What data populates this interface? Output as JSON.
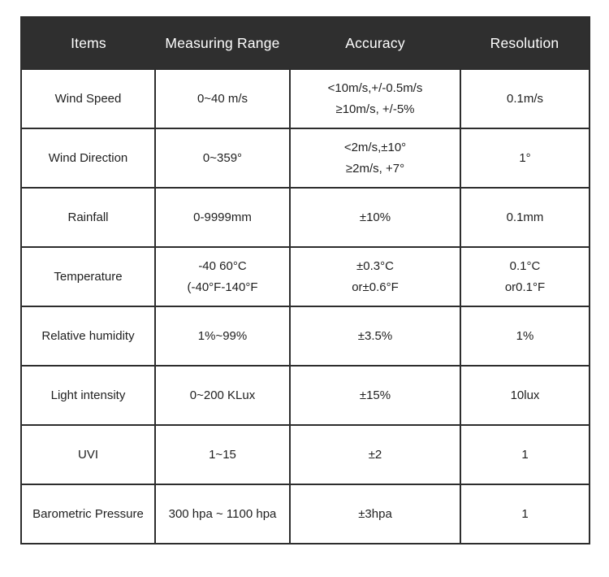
{
  "page": {
    "background_color": "#ffffff",
    "header_bg_color": "#2f2f2f",
    "header_text_color": "#ffffff",
    "border_color": "#2d2d2d",
    "body_text_color": "#1f1f1f"
  },
  "table": {
    "header": {
      "items": "Items",
      "measuring_range": "Measuring Range",
      "accuracy": "Accuracy",
      "resolution": "Resolution"
    },
    "rows": [
      {
        "item": "Wind Speed",
        "measuring_range": "0~40 m/s",
        "accuracy": "<10m/s,+/-0.5m/s\n≥10m/s, +/-5%",
        "resolution": "0.1m/s"
      },
      {
        "item": "Wind Direction",
        "measuring_range": "0~359°",
        "accuracy": "<2m/s,±10°\n≥2m/s, +7°",
        "resolution": "1°"
      },
      {
        "item": "Rainfall",
        "measuring_range": "0-9999mm",
        "accuracy": "±10%",
        "resolution": "0.1mm"
      },
      {
        "item": "Temperature",
        "measuring_range": "-40 60°C\n(-40°F-140°F",
        "accuracy": "±0.3°C\nor±0.6°F",
        "resolution": "0.1°C\nor0.1°F"
      },
      {
        "item": "Relative humidity",
        "measuring_range": "1%~99%",
        "accuracy": "±3.5%",
        "resolution": "1%"
      },
      {
        "item": "Light intensity",
        "measuring_range": "0~200 KLux",
        "accuracy": "±15%",
        "resolution": "10lux"
      },
      {
        "item": "UVI",
        "measuring_range": "1~15",
        "accuracy": "±2",
        "resolution": "1"
      },
      {
        "item": "Barometric Pressure",
        "measuring_range": "300 hpa ~ 1100 hpa",
        "accuracy": "±3hpa",
        "resolution": "1"
      }
    ]
  }
}
